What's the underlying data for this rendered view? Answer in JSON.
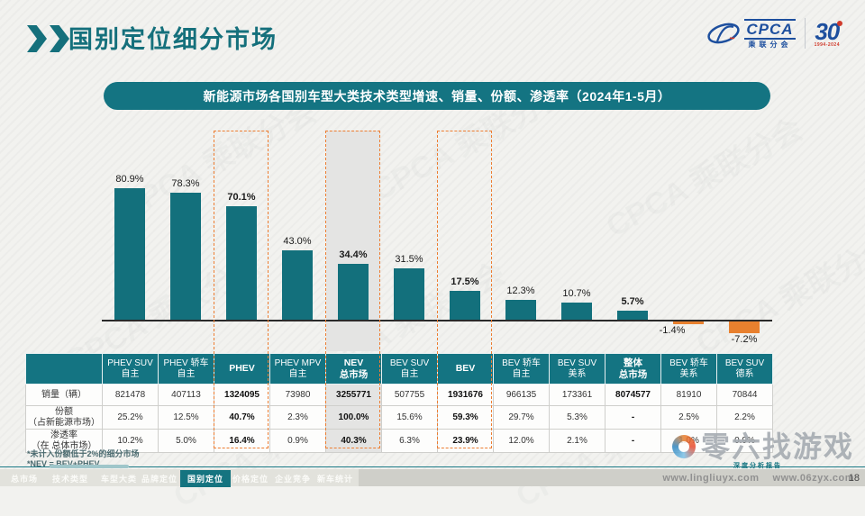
{
  "page": {
    "title": "国别定位细分市场",
    "page_number": "18"
  },
  "logo": {
    "cpca_text": "CPCA",
    "cpca_subtext": "乘联分会",
    "anniversary_number": "30",
    "anniversary_years": "1994-2024"
  },
  "watermark_text": "CPCA 乘联分会",
  "banner": {
    "text": "新能源市场各国别车型大类技术类型增速、销量、份额、渗透率（2024年1-5月）"
  },
  "chart_data": {
    "type": "bar",
    "title": "新能源市场各国别车型大类技术类型增速（2024年1-5月）",
    "categories": [
      "PHEV SUV 自主",
      "PHEV 轿车 自主",
      "PHEV",
      "PHEV MPV 自主",
      "NEV 总市场",
      "BEV SUV 自主",
      "BEV",
      "BEV 轿车 自主",
      "BEV SUV 美系",
      "整体 总市场",
      "BEV 轿车 美系",
      "BEV SUV 德系"
    ],
    "values": [
      80.9,
      78.3,
      70.1,
      43.0,
      34.4,
      31.5,
      17.5,
      12.3,
      10.7,
      5.7,
      -1.4,
      -7.2
    ],
    "labels": [
      "80.9%",
      "78.3%",
      "70.1%",
      "43.0%",
      "34.4%",
      "31.5%",
      "17.5%",
      "12.3%",
      "10.7%",
      "5.7%",
      "-1.4%",
      "-7.2%"
    ],
    "emphasis": [
      false,
      false,
      true,
      false,
      true,
      false,
      true,
      false,
      false,
      true,
      false,
      false
    ],
    "highlight_columns": [
      2,
      4,
      6
    ],
    "gray_column": 4,
    "label_shift_left": [
      10
    ],
    "bar_color": "#13707c",
    "negative_color": "#e8802e",
    "dashed_box_color": "#ed7d31",
    "ylim": [
      -10,
      90
    ],
    "xlabel": "",
    "ylabel": "",
    "grid": false,
    "legend": false
  },
  "table": {
    "columns": [
      "PHEV SUV\n自主",
      "PHEV 轿车\n自主",
      "PHEV",
      "PHEV MPV\n自主",
      "NEV\n总市场",
      "BEV SUV\n自主",
      "BEV",
      "BEV 轿车\n自主",
      "BEV SUV\n美系",
      "整体\n总市场",
      "BEV 轿车\n美系",
      "BEV SUV\n德系"
    ],
    "row_headers": [
      "销量（辆）",
      "份额\n（占新能源市场）",
      "渗透率\n（在 总体市场）"
    ],
    "rows": [
      [
        "821478",
        "407113",
        "1324095",
        "73980",
        "3255771",
        "507755",
        "1931676",
        "966135",
        "173361",
        "8074577",
        "81910",
        "70844"
      ],
      [
        "25.2%",
        "12.5%",
        "40.7%",
        "2.3%",
        "100.0%",
        "15.6%",
        "59.3%",
        "29.7%",
        "5.3%",
        "-",
        "2.5%",
        "2.2%"
      ],
      [
        "10.2%",
        "5.0%",
        "16.4%",
        "0.9%",
        "40.3%",
        "6.3%",
        "23.9%",
        "12.0%",
        "2.1%",
        "-",
        "1.0%",
        "0.9%"
      ]
    ],
    "emphasis_columns": [
      2,
      4,
      6,
      9
    ],
    "gray_columns": [
      4
    ]
  },
  "footnotes": [
    "*未计入份额低于2%的细分市场",
    "*NEV = BEV+PHEV"
  ],
  "nav": {
    "items": [
      "总市场",
      "技术类型",
      "车型大类",
      "品牌定位",
      "国别定位",
      "价格定位",
      "企业竞争",
      "新车统计"
    ],
    "active": "国别定位"
  },
  "site_watermark": {
    "brand": "零六找游戏",
    "tagline": "深度分析报告",
    "urls": "www.lingliuyx.com　 www.06zyx.com"
  },
  "colors": {
    "teal": "#147482",
    "orange": "#e8802e",
    "dashed": "#ed7d31"
  }
}
